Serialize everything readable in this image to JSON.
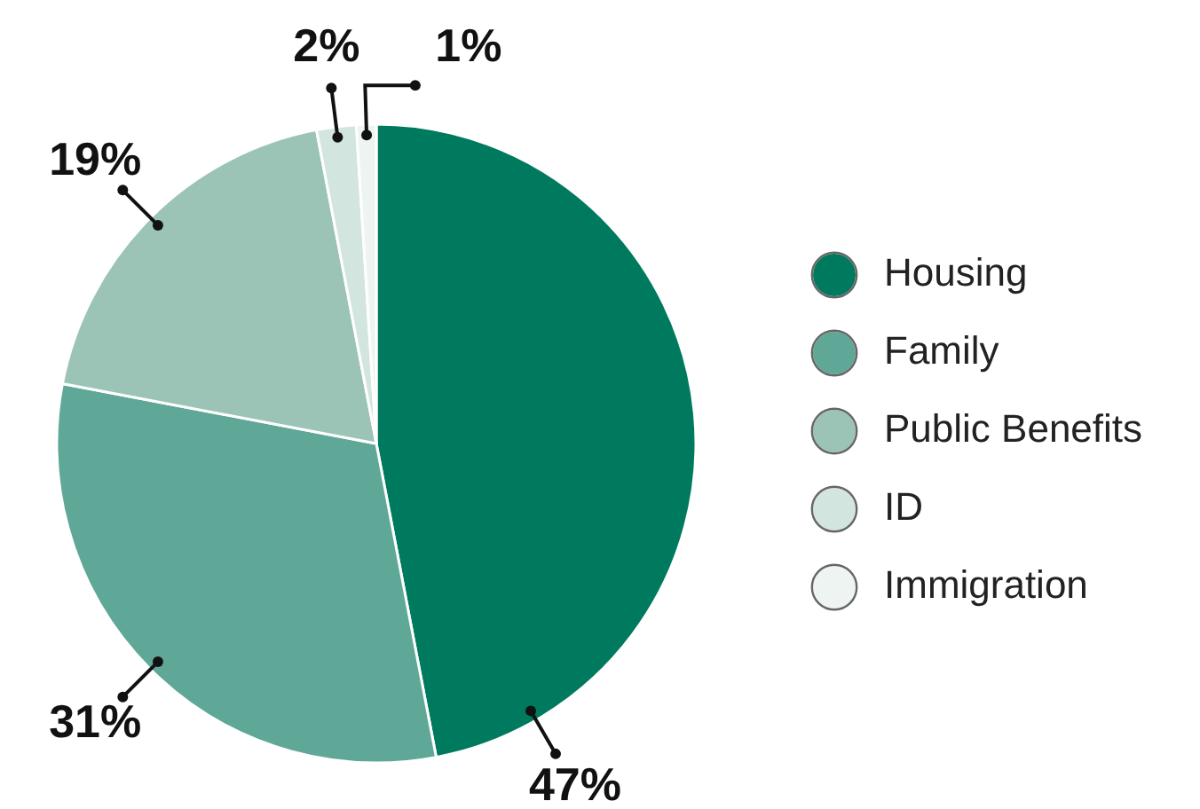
{
  "chart_data": {
    "type": "pie",
    "categories": [
      "Housing",
      "Family",
      "Public Benefits",
      "ID",
      "Immigration"
    ],
    "values": [
      47,
      31,
      19,
      2,
      1
    ],
    "colors": [
      "#007a5e",
      "#5fa898",
      "#9bc4b7",
      "#d2e5de",
      "#eef4f1"
    ],
    "value_labels": [
      "47%",
      "31%",
      "19%",
      "2%",
      "1%"
    ],
    "legend": "right"
  }
}
